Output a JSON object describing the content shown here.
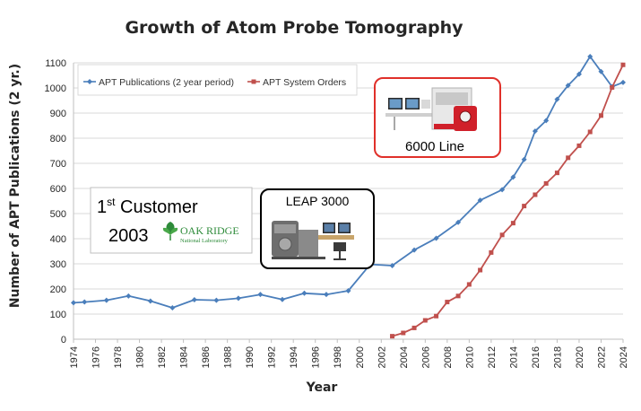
{
  "colors": {
    "publications": "#4a7ebb",
    "orders": "#c0504d",
    "grid": "#d9d9d9",
    "highlight_border": "#e0302a",
    "oak_ridge_green": "#2e8b3a"
  },
  "chart_data": {
    "type": "line",
    "title": "Growth of Atom Probe Tomography",
    "xlabel": "Year",
    "ylabel": "Number of APT Publications (2 yr.)",
    "xlim": [
      1974,
      2024
    ],
    "ylim": [
      0,
      1100
    ],
    "y_ticks": [
      0,
      100,
      200,
      300,
      400,
      500,
      600,
      700,
      800,
      900,
      1000,
      1100
    ],
    "x_ticks": [
      1974,
      1976,
      1978,
      1980,
      1982,
      1984,
      1986,
      1988,
      1990,
      1992,
      1994,
      1996,
      1998,
      2000,
      2002,
      2004,
      2006,
      2008,
      2010,
      2012,
      2014,
      2016,
      2018,
      2020,
      2022,
      2024
    ],
    "legend_position": "top-left",
    "series": [
      {
        "name": "APT Publications (2 year period)",
        "x": [
          1974,
          1975,
          1977,
          1979,
          1981,
          1983,
          1985,
          1987,
          1989,
          1991,
          1993,
          1995,
          1997,
          1999,
          2001,
          2003,
          2005,
          2007,
          2009,
          2011,
          2013,
          2014,
          2015,
          2016,
          2017,
          2018,
          2019,
          2020,
          2021,
          2022,
          2023,
          2024
        ],
        "values": [
          145,
          148,
          155,
          172,
          152,
          125,
          157,
          155,
          163,
          178,
          158,
          183,
          178,
          193,
          298,
          293,
          355,
          402,
          465,
          553,
          595,
          645,
          715,
          828,
          870,
          955,
          1010,
          1055,
          1125,
          1065,
          1005,
          1022
        ]
      },
      {
        "name": "APT System Orders",
        "x": [
          2003,
          2004,
          2005,
          2006,
          2007,
          2008,
          2009,
          2010,
          2011,
          2012,
          2013,
          2014,
          2015,
          2016,
          2017,
          2018,
          2019,
          2020,
          2021,
          2022,
          2023,
          2024
        ],
        "values": [
          12,
          25,
          45,
          75,
          92,
          148,
          172,
          218,
          275,
          345,
          415,
          462,
          530,
          575,
          620,
          662,
          722,
          770,
          825,
          890,
          1002,
          1092
        ]
      }
    ],
    "annotations": {
      "customer": {
        "line1_prefix": "1",
        "line1_sup": "st",
        "line1_suffix": " Customer",
        "year": "2003",
        "logo_name": "OAK RIDGE",
        "logo_sub": "National Laboratory"
      },
      "leap": {
        "label": "LEAP 3000"
      },
      "line6000": {
        "label": "6000 Line"
      }
    }
  }
}
